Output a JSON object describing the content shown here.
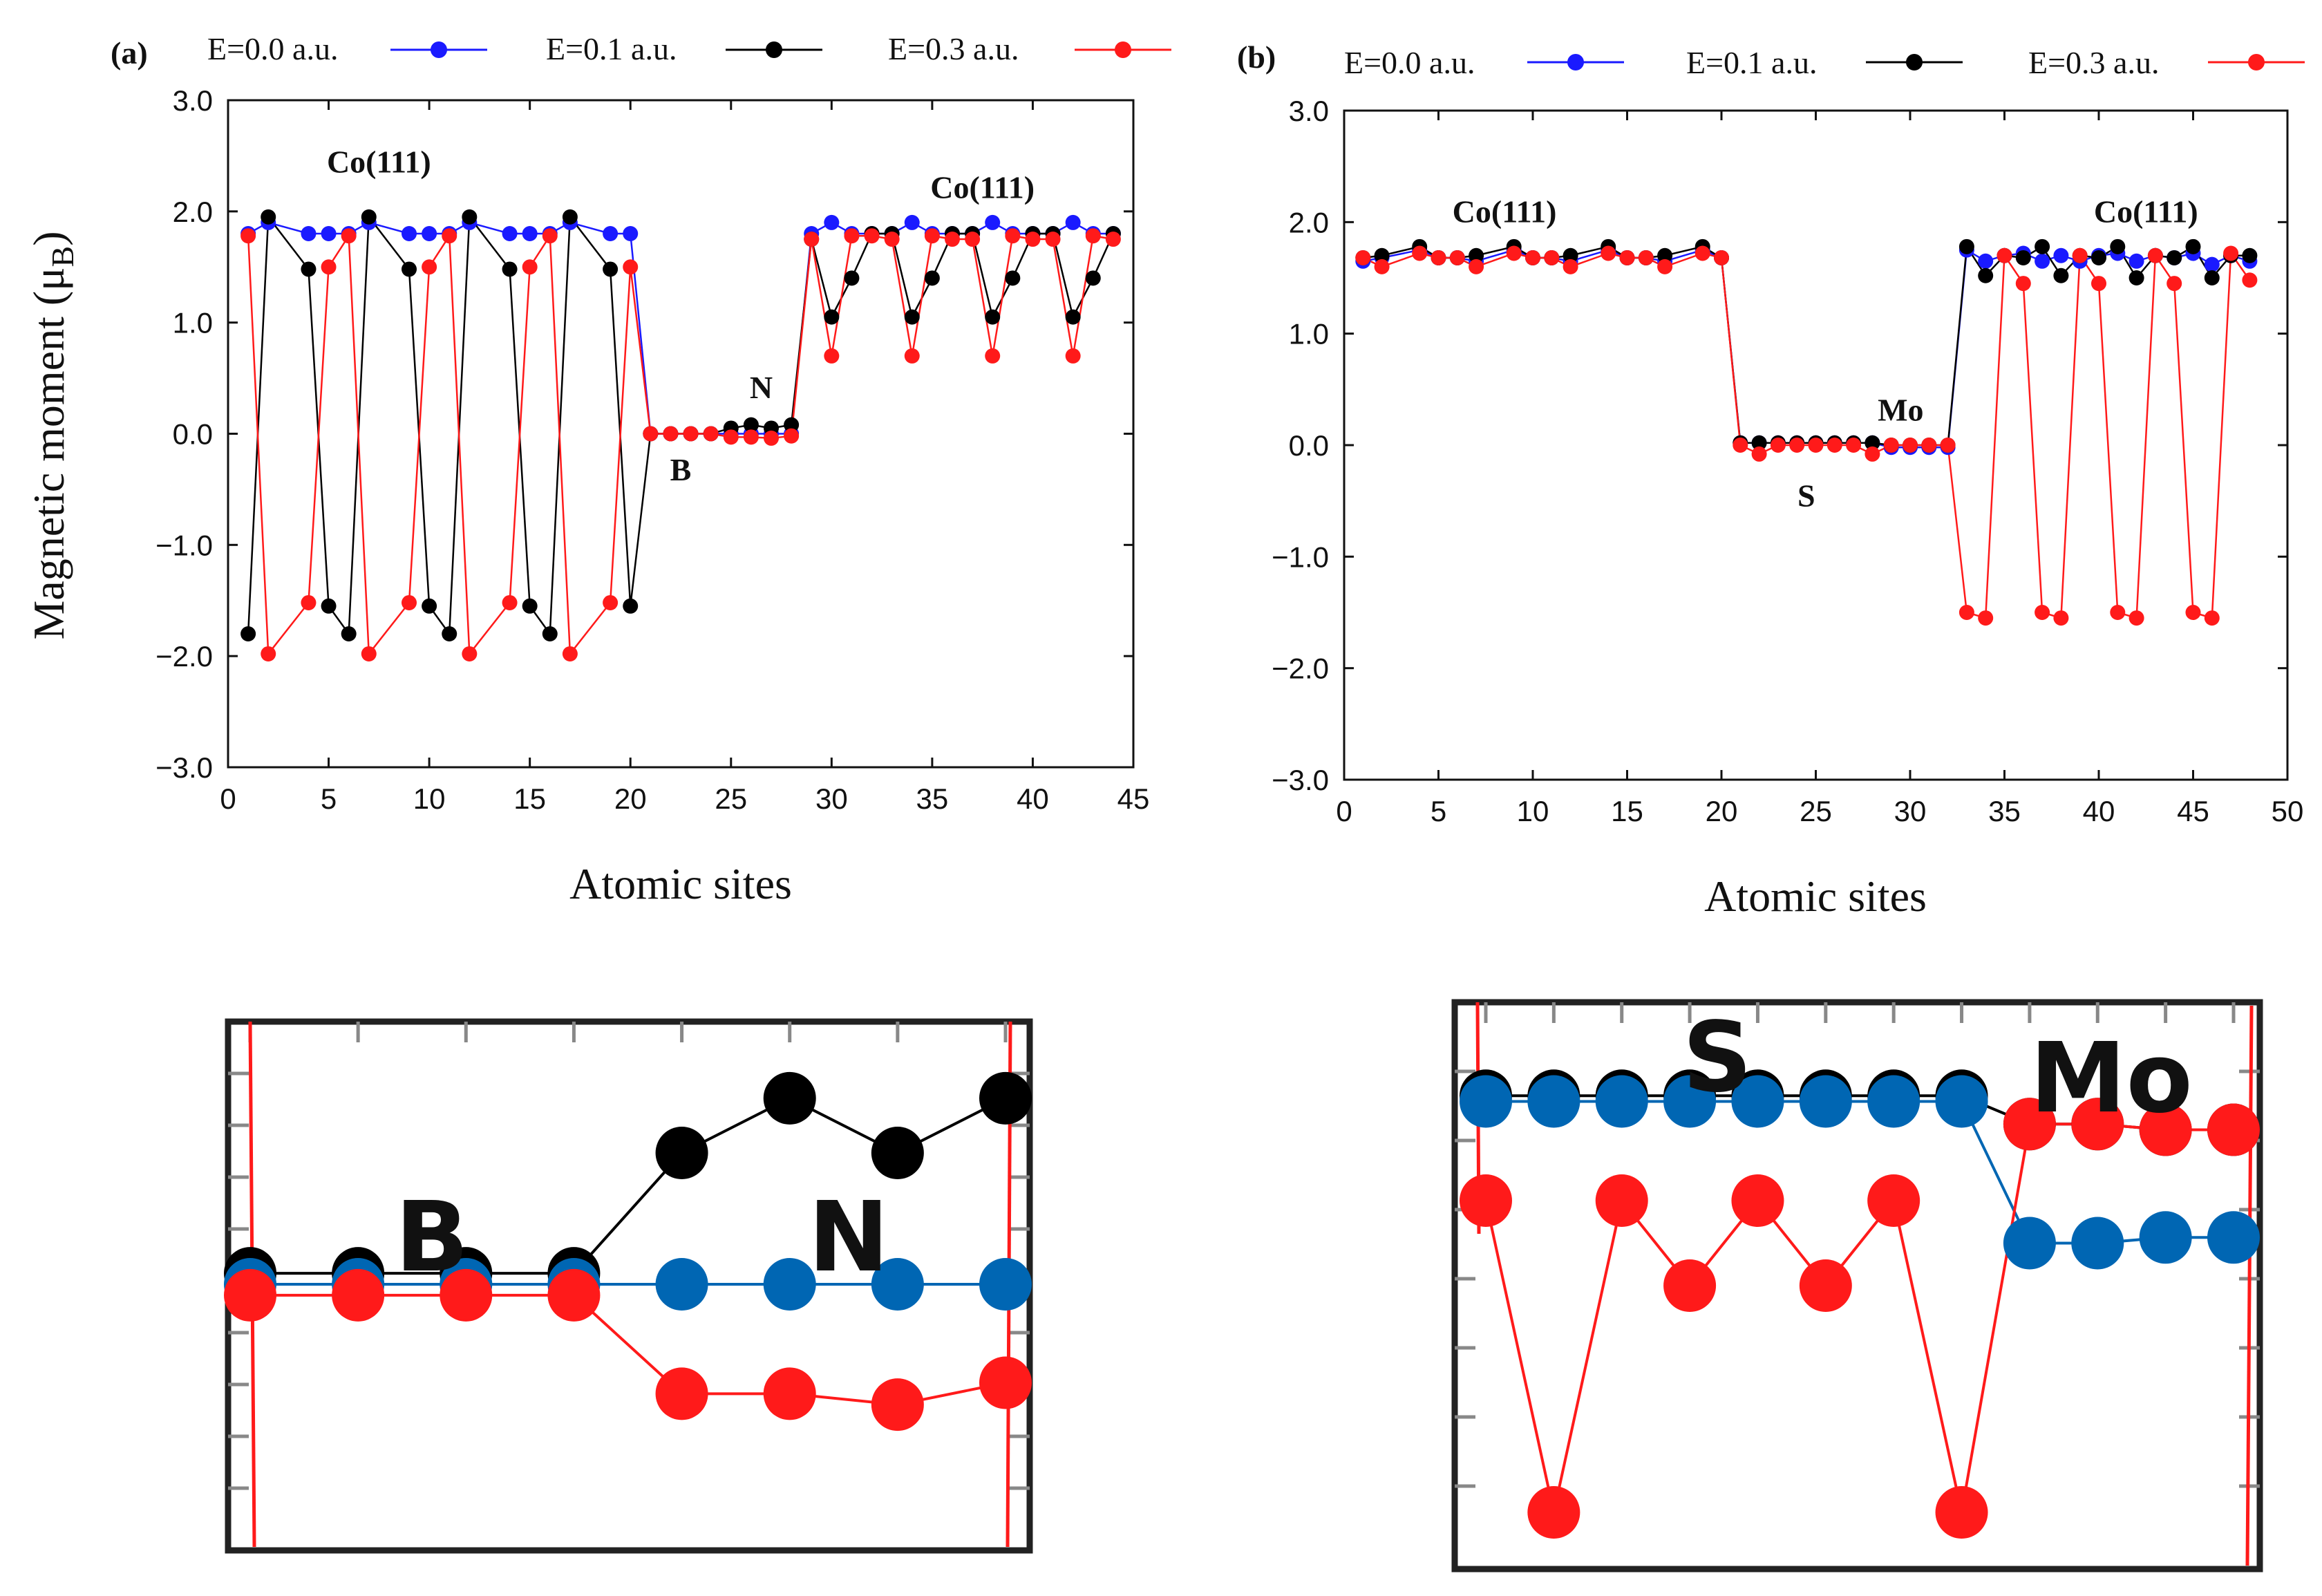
{
  "chart_data": [
    {
      "id": "a",
      "panel_label": "(a)",
      "type": "line",
      "xlabel": "Atomic sites",
      "ylabel": "Magnetic moment (μB)",
      "ylabel_main": "Magnetic moment (μ",
      "ylabel_sub": "B",
      "ylabel_close": ")",
      "xlim": [
        0,
        45
      ],
      "ylim": [
        -3.0,
        3.0
      ],
      "xticks": [
        0,
        5,
        10,
        15,
        20,
        25,
        30,
        35,
        40,
        45
      ],
      "yticks": [
        3.0,
        2.0,
        1.0,
        0.0,
        -1.0,
        -2.0,
        -3.0
      ],
      "ytick_labels": [
        "3.0",
        "2.0",
        "1.0",
        "0.0",
        "−1.0",
        "−2.0",
        "−3.0"
      ],
      "annotations": [
        {
          "text": "Co(111)",
          "x": 7.5,
          "y": 2.35
        },
        {
          "text": "N",
          "x": 26.5,
          "y": 0.32
        },
        {
          "text": "B",
          "x": 22.5,
          "y": -0.42
        },
        {
          "text": "Co(111)",
          "x": 37.5,
          "y": 2.12
        }
      ],
      "series": [
        {
          "name": "E=0.0 a.u.",
          "color": "#1a1aff",
          "x": [
            1,
            2,
            4,
            5,
            6,
            7,
            9,
            10,
            11,
            12,
            14,
            15,
            16,
            17,
            19,
            20,
            21,
            22,
            23,
            24,
            25,
            26,
            27,
            28,
            29,
            30,
            31,
            32,
            33,
            34,
            35,
            36,
            37,
            38,
            39,
            40,
            41,
            42,
            43,
            44
          ],
          "y": [
            1.8,
            1.9,
            1.8,
            1.8,
            1.8,
            1.9,
            1.8,
            1.8,
            1.8,
            1.9,
            1.8,
            1.8,
            1.8,
            1.9,
            1.8,
            1.8,
            0,
            0,
            0,
            0,
            0,
            0,
            0,
            0,
            1.8,
            1.9,
            1.8,
            1.8,
            1.8,
            1.9,
            1.8,
            1.8,
            1.8,
            1.9,
            1.8,
            1.8,
            1.8,
            1.9,
            1.8,
            1.8
          ]
        },
        {
          "name": "E=0.1 a.u.",
          "color": "#000000",
          "x": [
            1,
            2,
            4,
            5,
            6,
            7,
            9,
            10,
            11,
            12,
            14,
            15,
            16,
            17,
            19,
            20,
            21,
            22,
            23,
            24,
            25,
            26,
            27,
            28,
            29,
            30,
            31,
            32,
            33,
            34,
            35,
            36,
            37,
            38,
            39,
            40,
            41,
            42,
            43,
            44
          ],
          "y": [
            -1.8,
            1.95,
            1.48,
            -1.55,
            -1.8,
            1.95,
            1.48,
            -1.55,
            -1.8,
            1.95,
            1.48,
            -1.55,
            -1.8,
            1.95,
            1.48,
            -1.55,
            0,
            0,
            0,
            0,
            0.05,
            0.08,
            0.05,
            0.08,
            1.75,
            1.05,
            1.4,
            1.8,
            1.8,
            1.05,
            1.4,
            1.8,
            1.8,
            1.05,
            1.4,
            1.8,
            1.8,
            1.05,
            1.4,
            1.8
          ]
        },
        {
          "name": "E=0.3 a.u.",
          "color": "#ff1a1a",
          "x": [
            1,
            2,
            4,
            5,
            6,
            7,
            9,
            10,
            11,
            12,
            14,
            15,
            16,
            17,
            19,
            20,
            21,
            22,
            23,
            24,
            25,
            26,
            27,
            28,
            29,
            30,
            31,
            32,
            33,
            34,
            35,
            36,
            37,
            38,
            39,
            40,
            41,
            42,
            43,
            44
          ],
          "y": [
            1.78,
            -1.98,
            -1.52,
            1.5,
            1.78,
            -1.98,
            -1.52,
            1.5,
            1.78,
            -1.98,
            -1.52,
            1.5,
            1.78,
            -1.98,
            -1.52,
            1.5,
            0,
            0,
            0,
            0,
            -0.03,
            -0.03,
            -0.04,
            -0.02,
            1.75,
            0.7,
            1.78,
            1.78,
            1.75,
            0.7,
            1.78,
            1.75,
            1.75,
            0.7,
            1.78,
            1.75,
            1.75,
            0.7,
            1.78,
            1.75
          ]
        }
      ]
    },
    {
      "id": "b",
      "panel_label": "(b)",
      "type": "line",
      "xlabel": "Atomic sites",
      "ylabel": "",
      "xlim": [
        0,
        50
      ],
      "ylim": [
        -3.0,
        3.0
      ],
      "xticks": [
        0,
        5,
        10,
        15,
        20,
        25,
        30,
        35,
        40,
        45,
        50
      ],
      "yticks": [
        3.0,
        2.0,
        1.0,
        0.0,
        -1.0,
        -2.0,
        -3.0
      ],
      "ytick_labels": [
        "3.0",
        "2.0",
        "1.0",
        "0.0",
        "−1.0",
        "−2.0",
        "−3.0"
      ],
      "annotations": [
        {
          "text": "Co(111)",
          "x": 8.5,
          "y": 2.0
        },
        {
          "text": "Mo",
          "x": 29.5,
          "y": 0.22
        },
        {
          "text": "S",
          "x": 24.5,
          "y": -0.55
        },
        {
          "text": "Co(111)",
          "x": 42.5,
          "y": 2.0
        }
      ],
      "series": [
        {
          "name": "E=0.0 a.u.",
          "color": "#1a1aff",
          "x": [
            1,
            2,
            4,
            5,
            6,
            7,
            9,
            10,
            11,
            12,
            14,
            15,
            16,
            17,
            19,
            20,
            21,
            22,
            23,
            24,
            25,
            26,
            27,
            28,
            29,
            30,
            31,
            32,
            33,
            34,
            35,
            36,
            37,
            38,
            39,
            40,
            41,
            42,
            43,
            44,
            45,
            46,
            47,
            48
          ],
          "y": [
            1.65,
            1.68,
            1.75,
            1.68,
            1.68,
            1.65,
            1.75,
            1.68,
            1.68,
            1.65,
            1.75,
            1.68,
            1.68,
            1.65,
            1.75,
            1.68,
            0.02,
            0.02,
            0.02,
            0.02,
            0.02,
            0.02,
            0.02,
            0.02,
            -0.02,
            -0.02,
            -0.02,
            -0.02,
            1.75,
            1.65,
            1.7,
            1.72,
            1.65,
            1.7,
            1.65,
            1.7,
            1.72,
            1.65,
            1.7,
            1.68,
            1.72,
            1.62,
            1.7,
            1.65
          ]
        },
        {
          "name": "E=0.1 a.u.",
          "color": "#000000",
          "x": [
            1,
            2,
            4,
            5,
            6,
            7,
            9,
            10,
            11,
            12,
            14,
            15,
            16,
            17,
            19,
            20,
            21,
            22,
            23,
            24,
            25,
            26,
            27,
            28,
            29,
            30,
            31,
            32,
            33,
            34,
            35,
            36,
            37,
            38,
            39,
            40,
            41,
            42,
            43,
            44,
            45,
            46,
            47,
            48
          ],
          "y": [
            1.68,
            1.7,
            1.78,
            1.68,
            1.68,
            1.7,
            1.78,
            1.68,
            1.68,
            1.7,
            1.78,
            1.68,
            1.68,
            1.7,
            1.78,
            1.68,
            0.02,
            0.02,
            0.02,
            0.02,
            0.02,
            0.02,
            0.02,
            0.02,
            0.0,
            0.0,
            0.0,
            0.0,
            1.78,
            1.52,
            1.7,
            1.68,
            1.78,
            1.52,
            1.7,
            1.68,
            1.78,
            1.5,
            1.7,
            1.68,
            1.78,
            1.5,
            1.7,
            1.7
          ]
        },
        {
          "name": "E=0.3 a.u.",
          "color": "#ff1a1a",
          "x": [
            1,
            2,
            4,
            5,
            6,
            7,
            9,
            10,
            11,
            12,
            14,
            15,
            16,
            17,
            19,
            20,
            21,
            22,
            23,
            24,
            25,
            26,
            27,
            28,
            29,
            30,
            31,
            32,
            33,
            34,
            35,
            36,
            37,
            38,
            39,
            40,
            41,
            42,
            43,
            44,
            45,
            46,
            47,
            48
          ],
          "y": [
            1.68,
            1.6,
            1.72,
            1.68,
            1.68,
            1.6,
            1.72,
            1.68,
            1.68,
            1.6,
            1.72,
            1.68,
            1.68,
            1.6,
            1.72,
            1.68,
            0.0,
            -0.08,
            0.0,
            0.0,
            0.0,
            0.0,
            0.0,
            -0.08,
            0.0,
            0.0,
            0.0,
            0.0,
            -1.5,
            -1.55,
            1.7,
            1.45,
            -1.5,
            -1.55,
            1.7,
            1.45,
            -1.5,
            -1.55,
            1.7,
            1.45,
            -1.5,
            -1.55,
            1.72,
            1.48
          ]
        }
      ]
    },
    {
      "id": "inset-a",
      "type": "line",
      "labels": {
        "left": "B",
        "right": "N"
      },
      "ylim": [
        -0.12,
        0.12
      ],
      "series": [
        {
          "name": "E=0.0 a.u.",
          "color": "#0066b3",
          "x": [
            21,
            22,
            23,
            24,
            25,
            26,
            27,
            28
          ],
          "y": [
            0.0,
            0.0,
            0.0,
            0.0,
            0.0,
            0.0,
            0.0,
            0.0
          ]
        },
        {
          "name": "E=0.1 a.u.",
          "color": "#000000",
          "x": [
            21,
            22,
            23,
            24,
            25,
            26,
            27,
            28
          ],
          "y": [
            0.005,
            0.005,
            0.005,
            0.005,
            0.06,
            0.085,
            0.06,
            0.085
          ]
        },
        {
          "name": "E=0.3 a.u.",
          "color": "#ff1a1a",
          "x": [
            21,
            22,
            23,
            24,
            25,
            26,
            27,
            28
          ],
          "y": [
            -0.005,
            -0.005,
            -0.005,
            -0.005,
            -0.05,
            -0.05,
            -0.055,
            -0.045
          ]
        }
      ]
    },
    {
      "id": "inset-b",
      "type": "line",
      "labels": {
        "left": "S",
        "right": "Mo"
      },
      "ylim": [
        -0.13,
        0.07
      ],
      "series": [
        {
          "name": "E=0.0 a.u.",
          "color": "#0066b3",
          "x": [
            21,
            22,
            23,
            24,
            25,
            26,
            27,
            28,
            29,
            30,
            31,
            32
          ],
          "y": [
            0.035,
            0.035,
            0.035,
            0.035,
            0.035,
            0.035,
            0.035,
            0.035,
            -0.015,
            -0.015,
            -0.013,
            -0.013
          ]
        },
        {
          "name": "E=0.1 a.u.",
          "color": "#000000",
          "x": [
            21,
            22,
            23,
            24,
            25,
            26,
            27,
            28,
            29,
            30,
            31,
            32
          ],
          "y": [
            0.037,
            0.037,
            0.037,
            0.037,
            0.037,
            0.037,
            0.037,
            0.037,
            0.027,
            0.027,
            0.025,
            0.025
          ]
        },
        {
          "name": "E=0.3 a.u.",
          "color": "#ff1a1a",
          "x": [
            21,
            22,
            23,
            24,
            25,
            26,
            27,
            28,
            29,
            30,
            31,
            32
          ],
          "y": [
            0.0,
            -0.11,
            0.0,
            -0.03,
            0.0,
            -0.03,
            0.0,
            -0.11,
            0.027,
            0.027,
            0.025,
            0.025
          ]
        }
      ]
    }
  ]
}
